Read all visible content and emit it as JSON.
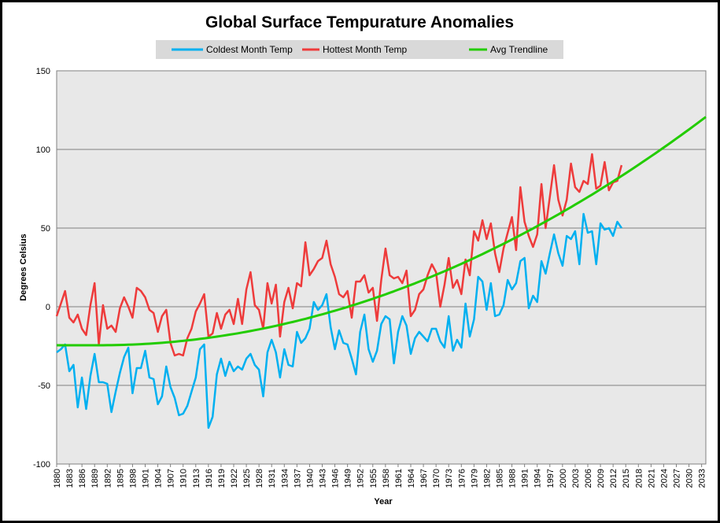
{
  "chart_data": {
    "type": "line",
    "title": "Global Surface Tempurature Anomalies",
    "xlabel": "Year",
    "ylabel": "Degrees Celsius",
    "ylim": [
      -100,
      150
    ],
    "yticks": [
      -100,
      -50,
      0,
      50,
      100,
      150
    ],
    "xlim": [
      1880,
      2034
    ],
    "xticks": [
      1880,
      1883,
      1886,
      1889,
      1892,
      1895,
      1898,
      1901,
      1904,
      1907,
      1910,
      1913,
      1916,
      1919,
      1922,
      1925,
      1928,
      1931,
      1934,
      1937,
      1940,
      1943,
      1946,
      1949,
      1952,
      1955,
      1958,
      1961,
      1964,
      1967,
      1970,
      1973,
      1976,
      1979,
      1982,
      1985,
      1988,
      1991,
      1994,
      1997,
      2000,
      2003,
      2006,
      2009,
      2012,
      2015,
      2018,
      2021,
      2024,
      2027,
      2030,
      2033
    ],
    "grid": true,
    "legend_position": "top",
    "series": [
      {
        "name": "Coldest Month Temp",
        "color": "#00b0f0",
        "x_start": 1880,
        "values": [
          -29,
          -27,
          -24,
          -41,
          -37,
          -64,
          -45,
          -65,
          -44,
          -30,
          -48,
          -48,
          -49,
          -67,
          -54,
          -42,
          -32,
          -26,
          -55,
          -39,
          -39,
          -28,
          -45,
          -46,
          -62,
          -57,
          -38,
          -51,
          -58,
          -69,
          -68,
          -63,
          -54,
          -45,
          -27,
          -24,
          -77,
          -70,
          -43,
          -33,
          -44,
          -35,
          -41,
          -38,
          -40,
          -33,
          -30,
          -37,
          -40,
          -57,
          -29,
          -21,
          -29,
          -45,
          -27,
          -37,
          -38,
          -16,
          -23,
          -20,
          -14,
          3,
          -2,
          1,
          8,
          -13,
          -27,
          -15,
          -23,
          -24,
          -33,
          -43,
          -16,
          -5,
          -27,
          -35,
          -28,
          -11,
          -6,
          -8,
          -36,
          -16,
          -6,
          -12,
          -30,
          -20,
          -16,
          -19,
          -22,
          -14,
          -14,
          -22,
          -26,
          -6,
          -28,
          -21,
          -26,
          2,
          -19,
          -8,
          19,
          16,
          -2,
          15,
          -6,
          -5,
          1,
          17,
          11,
          15,
          29,
          31,
          -1,
          7,
          3,
          29,
          21,
          34,
          46,
          34,
          26,
          45,
          43,
          48,
          27,
          59,
          47,
          48,
          27,
          53,
          49,
          50,
          45,
          54,
          50
        ]
      },
      {
        "name": "Hottest Month Temp",
        "color": "#ee3b3b",
        "x_start": 1880,
        "values": [
          -6,
          2,
          10,
          -7,
          -10,
          -5,
          -14,
          -18,
          1,
          15,
          -24,
          1,
          -14,
          -12,
          -16,
          -1,
          6,
          0,
          -7,
          12,
          10,
          6,
          -2,
          -4,
          -16,
          -6,
          -2,
          -23,
          -31,
          -30,
          -31,
          -20,
          -14,
          -3,
          2,
          8,
          -19,
          -17,
          -4,
          -14,
          -5,
          -2,
          -11,
          5,
          -11,
          11,
          22,
          1,
          -2,
          -14,
          15,
          2,
          14,
          -19,
          3,
          12,
          -1,
          15,
          13,
          41,
          20,
          24,
          29,
          31,
          42,
          27,
          19,
          8,
          6,
          10,
          -7,
          16,
          16,
          20,
          9,
          12,
          -9,
          17,
          37,
          20,
          18,
          19,
          15,
          23,
          -6,
          -2,
          8,
          11,
          20,
          27,
          22,
          0,
          14,
          31,
          12,
          17,
          8,
          30,
          20,
          48,
          42,
          55,
          43,
          53,
          34,
          22,
          37,
          47,
          57,
          36,
          76,
          54,
          45,
          38,
          46,
          78,
          50,
          70,
          90,
          68,
          58,
          68,
          91,
          76,
          73,
          80,
          78,
          97,
          75,
          77,
          92,
          74,
          79,
          80,
          90
        ]
      },
      {
        "name": "Avg Trendline",
        "color": "#22cc00",
        "trend": {
          "vertex_year": 1890,
          "base": -24.5,
          "coef": 0.007
        }
      }
    ]
  }
}
